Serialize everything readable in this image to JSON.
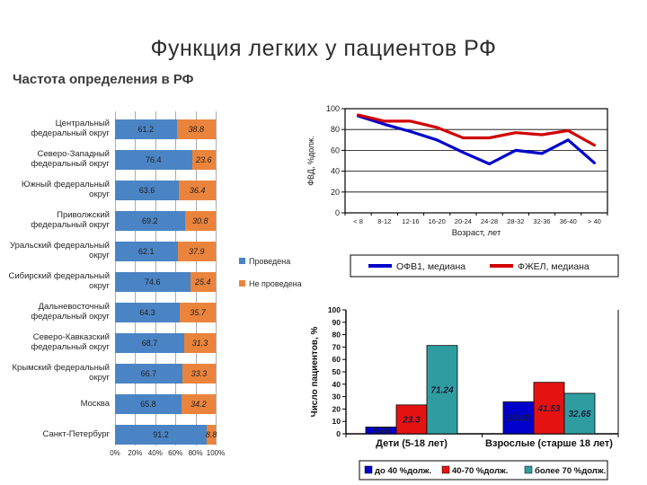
{
  "slide": {
    "title": "Функция легких у пациентов РФ",
    "subtitle": "Частота определения в РФ"
  },
  "colors": {
    "done_blue": "#4a84c4",
    "not_done_orange": "#ea843c",
    "grid_gray": "#ababab",
    "axis_black": "#000000",
    "value_label_dark": "#1c1c38"
  },
  "chart_data": [
    {
      "type": "bar",
      "orientation": "horizontal-stacked",
      "title": "Частота определения в РФ",
      "categories": [
        "Центральный федеральный округ",
        "Северо-Западный федеральный округ",
        "Южный федеральный округ",
        "Приволжский федеральный округ",
        "Уральский федеральный округ",
        "Сибирский федеральный округ",
        "Дальневосточный федеральный округ",
        "Северо-Кавказский федеральный округ",
        "Крымский федеральный округ",
        "Москва",
        "Санкт-Петербург"
      ],
      "series": [
        {
          "name": "Проведена",
          "color": "#4a84c4",
          "values": [
            61.2,
            76.4,
            63.6,
            69.2,
            62.1,
            74.6,
            64.3,
            68.7,
            66.7,
            65.8,
            91.2
          ]
        },
        {
          "name": "Не проведена",
          "color": "#ea843c",
          "values": [
            38.8,
            23.6,
            36.4,
            30.8,
            37.9,
            25.4,
            35.7,
            31.3,
            33.3,
            34.2,
            8.8
          ]
        }
      ],
      "x_ticks": [
        "0%",
        "20%",
        "40%",
        "60%",
        "80%",
        "100%"
      ],
      "xlim": [
        0,
        100
      ],
      "grid": true,
      "legend_position": "right"
    },
    {
      "type": "line",
      "categories": [
        "< 8",
        "8-12",
        "12-16",
        "16-20",
        "20-24",
        "24-28",
        "28-32",
        "32-36",
        "36-40",
        "> 40"
      ],
      "series": [
        {
          "name": "ОФВ1, медиана",
          "color": "#0000cc",
          "values": [
            93,
            85,
            78,
            70,
            58,
            47,
            60,
            57,
            70,
            48
          ]
        },
        {
          "name": "ФЖЕЛ, медиана",
          "color": "#d00000",
          "values": [
            94,
            88,
            88,
            82,
            72,
            72,
            77,
            75,
            79,
            65
          ]
        }
      ],
      "xlabel": "Возраст, лет",
      "ylabel": "ФВД, %долж.",
      "ylim": [
        0,
        100
      ],
      "y_ticks": [
        0,
        20,
        40,
        60,
        80,
        100
      ],
      "grid": true,
      "legend_position": "bottom"
    },
    {
      "type": "bar",
      "orientation": "vertical-grouped",
      "categories": [
        "Дети (5-18 лет)",
        "Взрослые (старше 18 лет)"
      ],
      "series": [
        {
          "name": "до 40 %долж.",
          "color": "#0000cc",
          "values": [
            5.46,
            25.82
          ]
        },
        {
          "name": "40-70 %долж.",
          "color": "#e51212",
          "values": [
            23.3,
            41.53
          ]
        },
        {
          "name": "более 70 %долж.",
          "color": "#2f9da0",
          "values": [
            71.24,
            32.65
          ]
        }
      ],
      "ylabel": "Число пациентов, %",
      "ylim": [
        0,
        100
      ],
      "y_ticks": [
        0,
        10,
        20,
        30,
        40,
        50,
        60,
        70,
        80,
        90,
        100
      ],
      "grid": false,
      "legend_position": "bottom",
      "value_labels": [
        [
          "5.46",
          "23.3",
          "71.24"
        ],
        [
          "25.82",
          "41.53",
          "32.65"
        ]
      ]
    }
  ]
}
